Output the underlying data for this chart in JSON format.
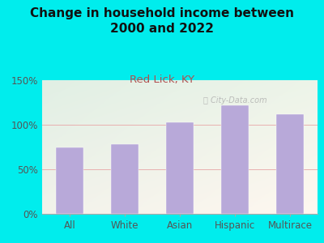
{
  "title": "Change in household income between\n2000 and 2022",
  "subtitle": "Red Lick, KY",
  "categories": [
    "All",
    "White",
    "Asian",
    "Hispanic",
    "Multirace"
  ],
  "values": [
    75,
    78,
    103,
    122,
    112
  ],
  "bar_color": "#b8a9d9",
  "title_fontsize": 11,
  "subtitle_fontsize": 9.5,
  "subtitle_color": "#b05050",
  "title_color": "#111111",
  "background_outer": "#00eded",
  "background_inner_color1": "#c8e8d0",
  "background_inner_color2": "#f0f8f0",
  "background_inner_color3": "#f8f8f0",
  "ylim": [
    0,
    150
  ],
  "yticks": [
    0,
    50,
    100,
    150
  ],
  "ytick_labels": [
    "0%",
    "50%",
    "100%",
    "150%"
  ],
  "watermark": "Ⓠ City-Data.com",
  "grid_color": "#e8b0b0",
  "axis_label_fontsize": 8.5,
  "tick_color": "#555555"
}
